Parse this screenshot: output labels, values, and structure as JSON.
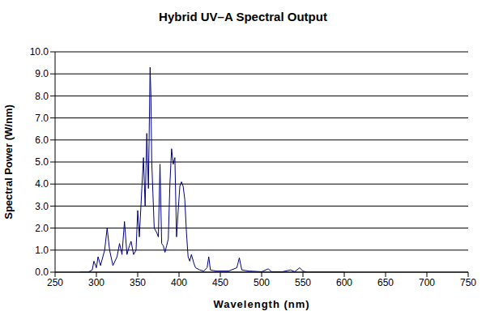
{
  "chart_data": {
    "type": "line",
    "title": "Hybrid UV–A Spectral Output",
    "x_label": "Wavelength (nm)",
    "y_label": "Spectral Power (W/nm)",
    "x": [
      280,
      290,
      295,
      297,
      300,
      302,
      305,
      310,
      313,
      316,
      320,
      325,
      328,
      331,
      334,
      337,
      340,
      342,
      345,
      348,
      350,
      352,
      355,
      357,
      359,
      361,
      363,
      365,
      366,
      367,
      370,
      373,
      375,
      377,
      379,
      381,
      383,
      385,
      387,
      389,
      391,
      393,
      395,
      397,
      399,
      401,
      403,
      405,
      407,
      409,
      411,
      413,
      415,
      418,
      420,
      425,
      430,
      434,
      436,
      438,
      445,
      460,
      470,
      473,
      476,
      485,
      500,
      508,
      512,
      525,
      535,
      540,
      546,
      550,
      555,
      600
    ],
    "values": [
      0,
      0,
      0.1,
      0.5,
      0.2,
      0.7,
      0.3,
      1.0,
      2.0,
      1.0,
      0.3,
      0.7,
      1.3,
      0.8,
      2.3,
      0.8,
      1.2,
      1.4,
      0.8,
      1.0,
      2.8,
      1.6,
      3.8,
      5.2,
      3.0,
      6.3,
      3.8,
      9.3,
      8.0,
      5.0,
      2.0,
      1.8,
      1.6,
      4.9,
      1.3,
      1.2,
      0.9,
      1.2,
      1.5,
      4.0,
      5.6,
      4.9,
      5.2,
      1.6,
      2.8,
      3.9,
      4.1,
      3.9,
      3.3,
      1.8,
      0.7,
      0.5,
      0.8,
      0.4,
      0.2,
      0.1,
      0.05,
      0.2,
      0.7,
      0.1,
      0.05,
      0.05,
      0.2,
      0.65,
      0.1,
      0.05,
      0.02,
      0.15,
      0.02,
      0.02,
      0.1,
      0.02,
      0.2,
      0.05,
      0,
      0
    ],
    "color": "#000080",
    "xlim": [
      250,
      750
    ],
    "xticks": [
      250,
      300,
      350,
      400,
      450,
      500,
      550,
      600,
      650,
      700,
      750
    ],
    "ylim": [
      0,
      10
    ],
    "yticks": [
      {
        "value": 0,
        "label": "0.0"
      },
      {
        "value": 1,
        "label": "1.0"
      },
      {
        "value": 2,
        "label": "2.0"
      },
      {
        "value": 3,
        "label": "3.0"
      },
      {
        "value": 4,
        "label": "4.0"
      },
      {
        "value": 5,
        "label": "5.0"
      },
      {
        "value": 6,
        "label": "6.0"
      },
      {
        "value": 7,
        "label": "7.0"
      },
      {
        "value": 8,
        "label": "8.0"
      },
      {
        "value": 9,
        "label": "9.0"
      },
      {
        "value": 10,
        "label": "10.0"
      }
    ],
    "grid": true
  }
}
